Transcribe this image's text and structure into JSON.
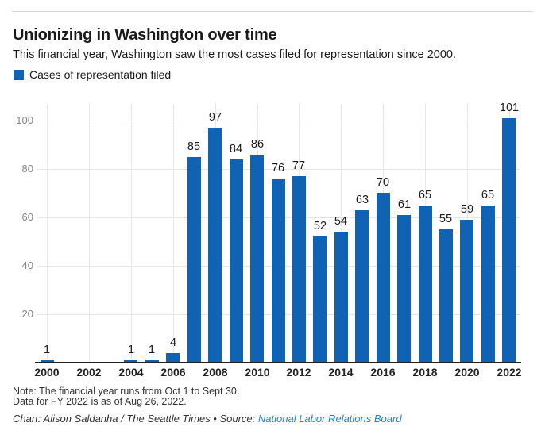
{
  "header": {
    "title": "Unionizing in Washington over time",
    "subtitle": "This financial year, Washington saw the most cases filed for representation since 2000."
  },
  "legend": {
    "label": "Cases of representation filed",
    "swatch_color": "#1062b2"
  },
  "chart_data": {
    "type": "bar",
    "title": "Unionizing in Washington over time",
    "series_name": "Cases of representation filed",
    "categories": [
      2000,
      2001,
      2002,
      2003,
      2004,
      2005,
      2006,
      2007,
      2008,
      2009,
      2010,
      2011,
      2012,
      2013,
      2014,
      2015,
      2016,
      2017,
      2018,
      2019,
      2020,
      2021,
      2022
    ],
    "values": [
      1,
      0,
      0,
      0,
      1,
      1,
      4,
      85,
      97,
      84,
      86,
      76,
      77,
      52,
      54,
      63,
      70,
      61,
      65,
      55,
      59,
      65,
      101
    ],
    "y_ticks": [
      20,
      40,
      60,
      80,
      100
    ],
    "x_tick_labels": [
      "2000",
      "2002",
      "2004",
      "2006",
      "2008",
      "2010",
      "2012",
      "2014",
      "2016",
      "2018",
      "2020",
      "2022"
    ],
    "ylim": [
      0,
      101
    ],
    "grid": "horizontal and vertical, light gray",
    "legend_position": "top-left",
    "bar_color": "#1062b2",
    "grid_color": "#e4e4e4",
    "axis_color": "#222222",
    "tick_label_color": "#878787",
    "value_label_color": "#1a1a1a"
  },
  "footer": {
    "note_line1": "Note: The financial year runs from Oct 1 to Sept 30.",
    "note_line2": "Data for FY 2022 is as of Aug 26, 2022.",
    "credit_prefix": "Chart: Alison Saldanha / The Seattle Times • Source: ",
    "source_link_text": "National Labor Relations Board",
    "link_color": "#1d87c9"
  }
}
